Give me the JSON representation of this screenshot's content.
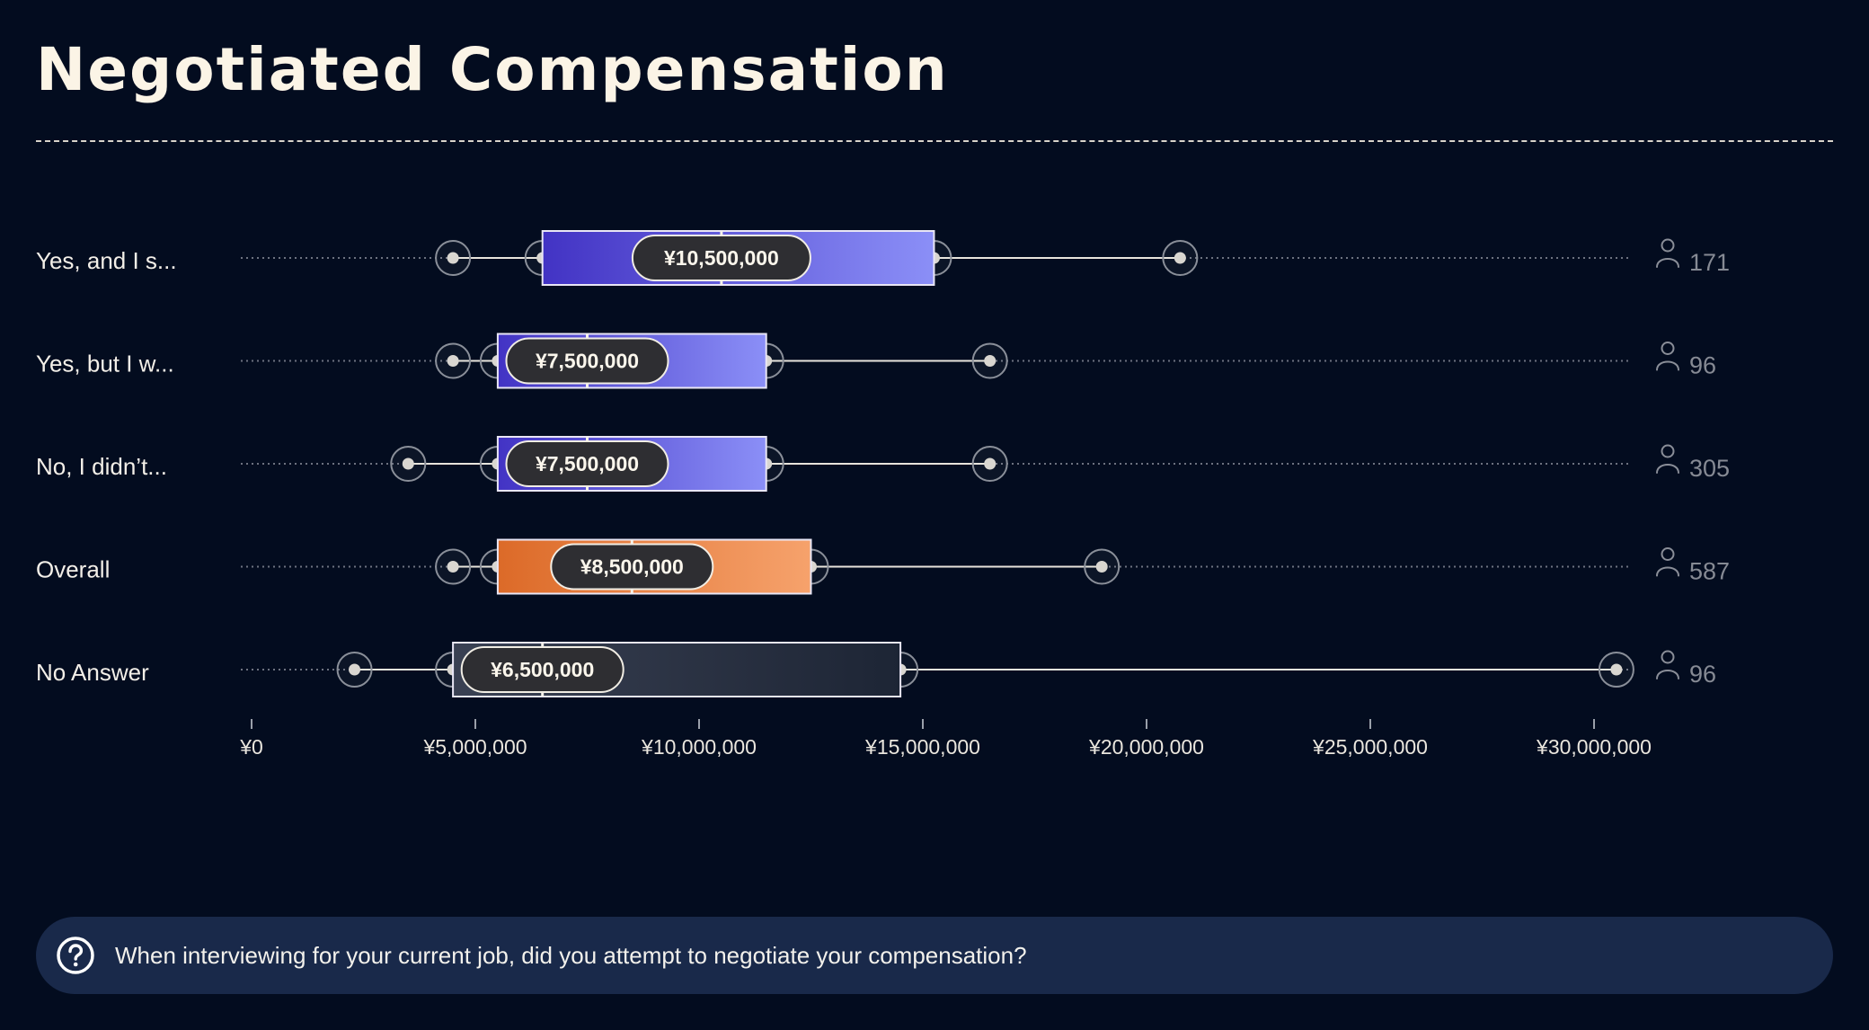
{
  "title": "Negotiated Compensation",
  "question": {
    "text": "When interviewing for your current job, did you attempt to negotiate your compensation?",
    "icon": "question-circle-icon"
  },
  "colors": {
    "background": "#030c1f",
    "accent_blue_start": "#4233c4",
    "accent_blue_end": "#8b8ff7",
    "accent_orange_start": "#dc6a28",
    "accent_orange_end": "#f6a26c",
    "neutral_start": "#3a4153",
    "neutral_end": "#1d2535",
    "question_bar": "#19294a"
  },
  "chart_data": {
    "type": "boxplot",
    "orientation": "horizontal",
    "x_ticks": [
      "¥0",
      "¥5,000,000",
      "¥10,000,000",
      "¥15,000,000",
      "¥20,000,000",
      "¥25,000,000",
      "¥30,000,000"
    ],
    "xlim": [
      0,
      31000000
    ],
    "count_icon": "person-icon",
    "categories": [
      {
        "label": "Yes, and I s...",
        "min": 4500000,
        "q1": 6500000,
        "median": 10500000,
        "q3": 15250000,
        "max": 20750000,
        "median_label": "¥10,500,000",
        "count": "171",
        "color": "blue"
      },
      {
        "label": "Yes, but I w...",
        "min": 4500000,
        "q1": 5500000,
        "median": 7500000,
        "q3": 11500000,
        "max": 16500000,
        "median_label": "¥7,500,000",
        "count": "96",
        "color": "blue"
      },
      {
        "label": "No, I didn’t...",
        "min": 3500000,
        "q1": 5500000,
        "median": 7500000,
        "q3": 11500000,
        "max": 16500000,
        "median_label": "¥7,500,000",
        "count": "305",
        "color": "blue"
      },
      {
        "label": "Overall",
        "min": 4500000,
        "q1": 5500000,
        "median": 8500000,
        "q3": 12500000,
        "max": 19000000,
        "median_label": "¥8,500,000",
        "count": "587",
        "color": "orange"
      },
      {
        "label": "No Answer",
        "min": 2300000,
        "q1": 4500000,
        "median": 6500000,
        "q3": 14500000,
        "max": 30500000,
        "median_label": "¥6,500,000",
        "count": "96",
        "color": "neutral"
      }
    ]
  }
}
